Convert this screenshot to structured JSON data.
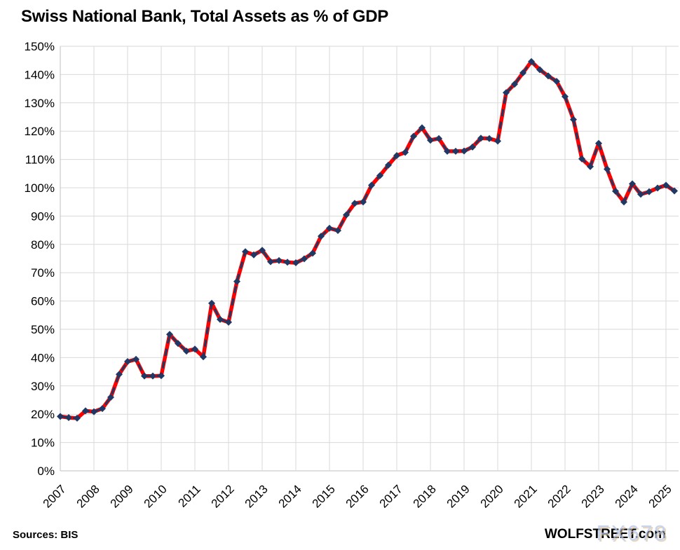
{
  "title": "Swiss National Bank, Total Assets as % of GDP",
  "footer": {
    "sources": "Sources: BIS",
    "credit": "WOLFSTREET.com",
    "watermark": "FX678"
  },
  "colors": {
    "line": "#FF0000",
    "marker": "#1F3864",
    "gridline": "#D9D9D9",
    "axis": "#BFBFBF",
    "text": "#000000",
    "watermark": "#B6C6E8"
  },
  "chart_data": {
    "type": "line",
    "title": "Swiss National Bank, Total Assets as % of GDP",
    "xlabel": "",
    "ylabel": "",
    "x_tick_labels": [
      "2007",
      "2008",
      "2009",
      "2010",
      "2011",
      "2012",
      "2013",
      "2014",
      "2015",
      "2016",
      "2017",
      "2018",
      "2019",
      "2020",
      "2021",
      "2022",
      "2023",
      "2024",
      "2025"
    ],
    "y_tick_labels": [
      "0%",
      "10%",
      "20%",
      "30%",
      "40%",
      "50%",
      "60%",
      "70%",
      "80%",
      "90%",
      "100%",
      "110%",
      "120%",
      "130%",
      "140%",
      "150%"
    ],
    "ylim": [
      0,
      150
    ],
    "y_step": 10,
    "grid": true,
    "legend": "none",
    "frequency": "quarterly",
    "start": "2007 Q1",
    "end": "2025 Q2",
    "series": [
      {
        "name": "Total Assets as % of GDP",
        "line_color": "#FF0000",
        "marker_color": "#1F3864",
        "style": "thick red line with navy dashed overlay and navy diamond markers",
        "values": [
          19.2,
          18.8,
          18.6,
          21.2,
          20.9,
          22.0,
          26.0,
          34.1,
          38.6,
          39.4,
          33.5,
          33.5,
          33.6,
          48.2,
          45.0,
          42.3,
          43.0,
          40.3,
          59.2,
          53.5,
          52.5,
          66.9,
          77.4,
          76.3,
          77.9,
          73.9,
          74.3,
          73.7,
          73.5,
          74.9,
          76.9,
          82.9,
          85.7,
          84.9,
          90.4,
          94.5,
          95.0,
          100.9,
          104.3,
          108.0,
          111.4,
          112.5,
          118.2,
          121.2,
          116.8,
          117.4,
          112.9,
          112.9,
          113.0,
          114.4,
          117.5,
          117.4,
          116.5,
          133.6,
          136.6,
          140.6,
          144.6,
          141.7,
          139.5,
          137.6,
          132.2,
          124.1,
          110.2,
          107.5,
          115.7,
          106.6,
          98.8,
          95.0,
          101.4,
          97.7,
          98.6,
          99.9,
          100.9,
          98.9
        ]
      }
    ]
  }
}
